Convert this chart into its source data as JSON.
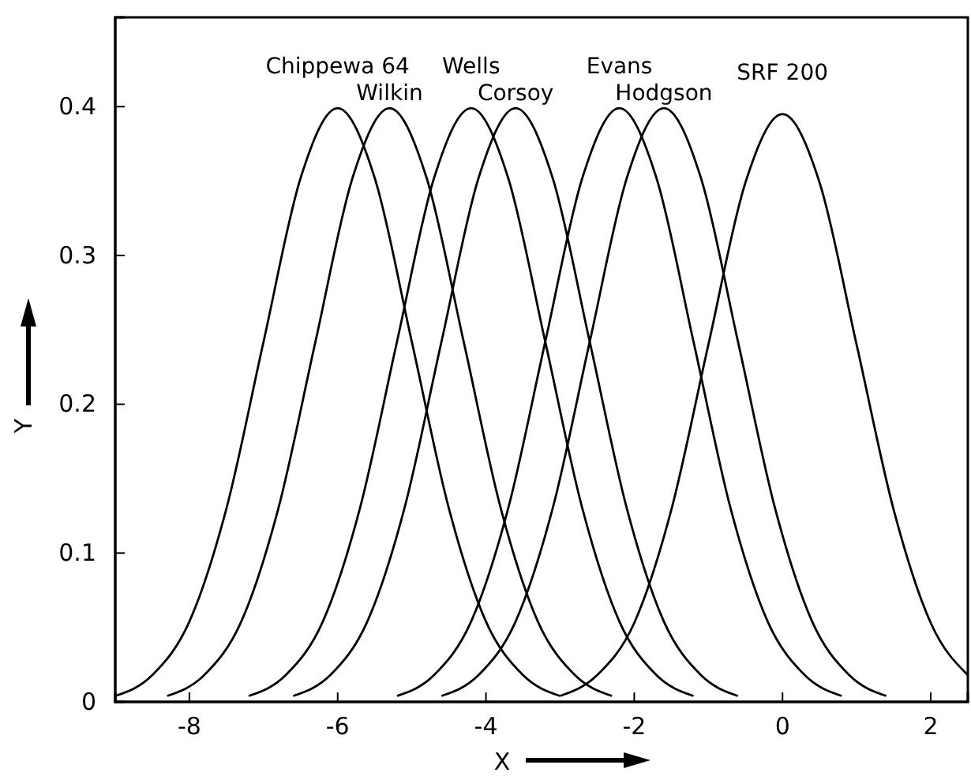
{
  "chart_data": {
    "type": "line",
    "xlabel": "X",
    "ylabel": "Y",
    "xlim": [
      -9,
      2.5
    ],
    "ylim": [
      0,
      0.46
    ],
    "xticks": [
      -8,
      -6,
      -4,
      -2,
      0,
      2
    ],
    "yticks": [
      0,
      0.1,
      0.2,
      0.3,
      0.4
    ],
    "grid": false,
    "legend": false,
    "marker": "none",
    "line_style": "solid",
    "annotations": [
      {
        "text": "Chippewa 64",
        "x": -6,
        "y": 0.399
      },
      {
        "text": "Wilkin",
        "x": -5.3,
        "y": 0.399
      },
      {
        "text": "Wells",
        "x": -4.2,
        "y": 0.399
      },
      {
        "text": "Corsoy",
        "x": -3.6,
        "y": 0.399
      },
      {
        "text": "Evans",
        "x": -2.2,
        "y": 0.399
      },
      {
        "text": "Hodgson",
        "x": -1.6,
        "y": 0.399
      },
      {
        "text": "SRF 200",
        "x": 0,
        "y": 0.395
      }
    ],
    "series": [
      {
        "color": "#000000",
        "x": [
          -9,
          -8.5,
          -8,
          -7.5,
          -7,
          -6.5,
          -6,
          -5.5,
          -5,
          -4.5,
          -4,
          -3.5,
          -3
        ],
        "values": [
          0.004,
          0.018,
          0.054,
          0.13,
          0.242,
          0.352,
          0.399,
          0.352,
          0.242,
          0.13,
          0.054,
          0.018,
          0.004
        ]
      },
      {
        "color": "#000000",
        "x": [
          -8.3,
          -7.8,
          -7.3,
          -6.8,
          -6.3,
          -5.8,
          -5.3,
          -4.8,
          -4.3,
          -3.8,
          -3.3,
          -2.8,
          -2.3
        ],
        "values": [
          0.004,
          0.018,
          0.054,
          0.13,
          0.242,
          0.352,
          0.399,
          0.352,
          0.242,
          0.13,
          0.054,
          0.018,
          0.004
        ]
      },
      {
        "color": "#000000",
        "x": [
          -7.2,
          -6.7,
          -6.2,
          -5.7,
          -5.2,
          -4.7,
          -4.2,
          -3.7,
          -3.2,
          -2.7,
          -2.2,
          -1.7,
          -1.2
        ],
        "values": [
          0.004,
          0.018,
          0.054,
          0.13,
          0.242,
          0.352,
          0.399,
          0.352,
          0.242,
          0.13,
          0.054,
          0.018,
          0.004
        ]
      },
      {
        "color": "#000000",
        "x": [
          -6.6,
          -6.1,
          -5.6,
          -5.1,
          -4.6,
          -4.1,
          -3.6,
          -3.1,
          -2.6,
          -2.1,
          -1.6,
          -1.1,
          -0.6
        ],
        "values": [
          0.004,
          0.018,
          0.054,
          0.13,
          0.242,
          0.352,
          0.399,
          0.352,
          0.242,
          0.13,
          0.054,
          0.018,
          0.004
        ]
      },
      {
        "color": "#000000",
        "x": [
          -5.2,
          -4.7,
          -4.2,
          -3.7,
          -3.2,
          -2.7,
          -2.2,
          -1.7,
          -1.2,
          -0.7,
          -0.2,
          0.3,
          0.8
        ],
        "values": [
          0.004,
          0.018,
          0.054,
          0.13,
          0.242,
          0.352,
          0.399,
          0.352,
          0.242,
          0.13,
          0.054,
          0.018,
          0.004
        ]
      },
      {
        "color": "#000000",
        "x": [
          -4.6,
          -4.1,
          -3.6,
          -3.1,
          -2.6,
          -2.1,
          -1.6,
          -1.1,
          -0.6,
          -0.1,
          0.4,
          0.9,
          1.4
        ],
        "values": [
          0.004,
          0.018,
          0.054,
          0.13,
          0.242,
          0.352,
          0.399,
          0.352,
          0.242,
          0.13,
          0.054,
          0.018,
          0.004
        ]
      },
      {
        "color": "#000000",
        "x": [
          -3,
          -2.5,
          -2,
          -1.5,
          -1,
          -0.5,
          0,
          0.5,
          1,
          1.5,
          2,
          2.5
        ],
        "values": [
          0.004,
          0.018,
          0.053,
          0.129,
          0.24,
          0.349,
          0.395,
          0.349,
          0.24,
          0.129,
          0.053,
          0.018
        ]
      }
    ]
  }
}
